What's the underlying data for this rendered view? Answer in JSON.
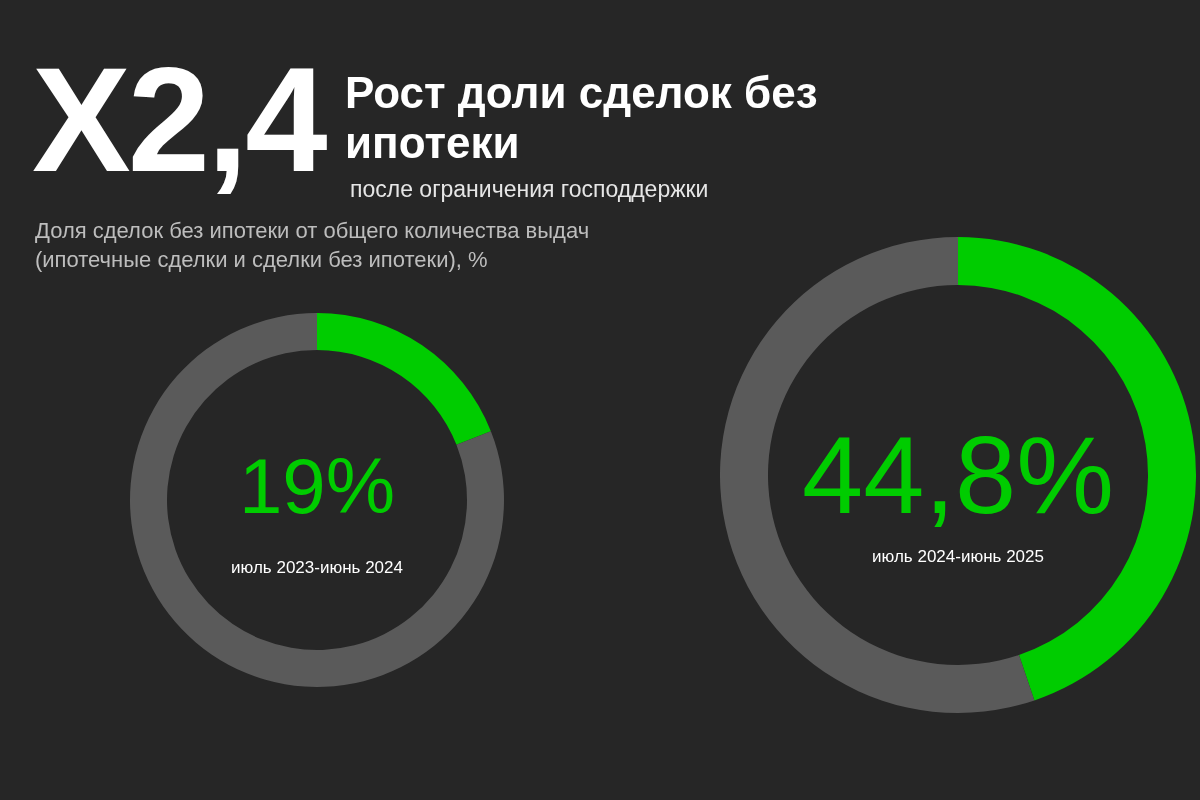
{
  "chart_data": [
    {
      "type": "other",
      "title": "X2,4",
      "subtitle": "Рост доли сделок без ипотеки",
      "annotations": [
        "после ограничения господдержки",
        "Доля сделок без ипотеки от общего количества выдач (ипотечные сделки и сделки без ипотеки), %"
      ]
    },
    {
      "type": "donut",
      "categories": [
        null,
        null
      ],
      "values": [
        19,
        81
      ],
      "colors": [
        "#00cc00",
        "#5a5a5a"
      ],
      "value_labels": [
        "19%",
        null
      ],
      "annotations": [
        "июль 2023-июнь 2024"
      ]
    },
    {
      "type": "donut",
      "categories": [
        null,
        null
      ],
      "values": [
        44.8,
        55.2
      ],
      "colors": [
        "#00cc00",
        "#5a5a5a"
      ],
      "value_labels": [
        "44,8%",
        null
      ],
      "annotations": [
        "июль 2024-июнь 2025"
      ]
    }
  ]
}
